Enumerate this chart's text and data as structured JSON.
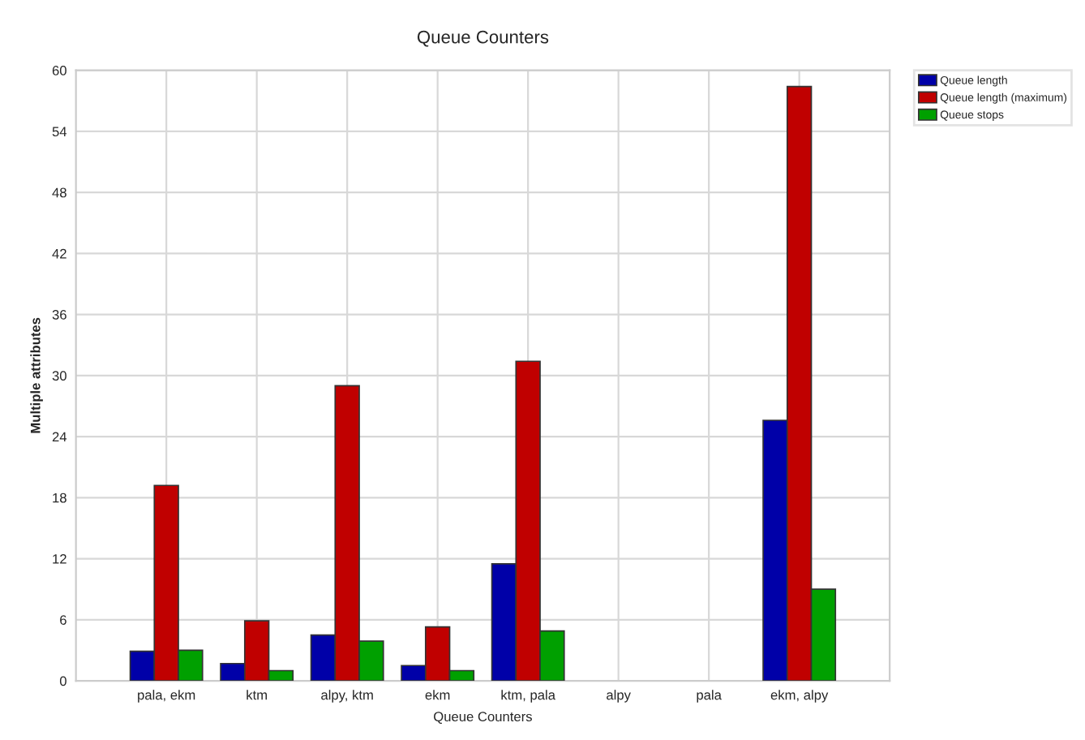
{
  "chart_data": {
    "type": "bar",
    "title": "Queue Counters",
    "xlabel": "Queue Counters",
    "ylabel": "Multiple attributes",
    "categories": [
      "pala, ekm",
      "ktm",
      "alpy, ktm",
      "ekm",
      "ktm, pala",
      "alpy",
      "pala",
      "ekm, alpy"
    ],
    "series": [
      {
        "name": "Queue length",
        "color": "#0000a8",
        "values": [
          2.9,
          1.7,
          4.5,
          1.5,
          11.5,
          null,
          null,
          25.6
        ]
      },
      {
        "name": "Queue length (maximum)",
        "color": "#c00000",
        "values": [
          19.2,
          5.9,
          29.0,
          5.3,
          31.4,
          null,
          null,
          58.4
        ]
      },
      {
        "name": "Queue stops",
        "color": "#00a000",
        "values": [
          3.0,
          1.0,
          3.9,
          1.0,
          4.9,
          null,
          null,
          9.0
        ]
      }
    ],
    "ylim": [
      0,
      60
    ],
    "yticks": [
      0,
      6,
      12,
      18,
      24,
      30,
      36,
      42,
      48,
      54,
      60
    ],
    "grid": true,
    "legend": "top right"
  }
}
